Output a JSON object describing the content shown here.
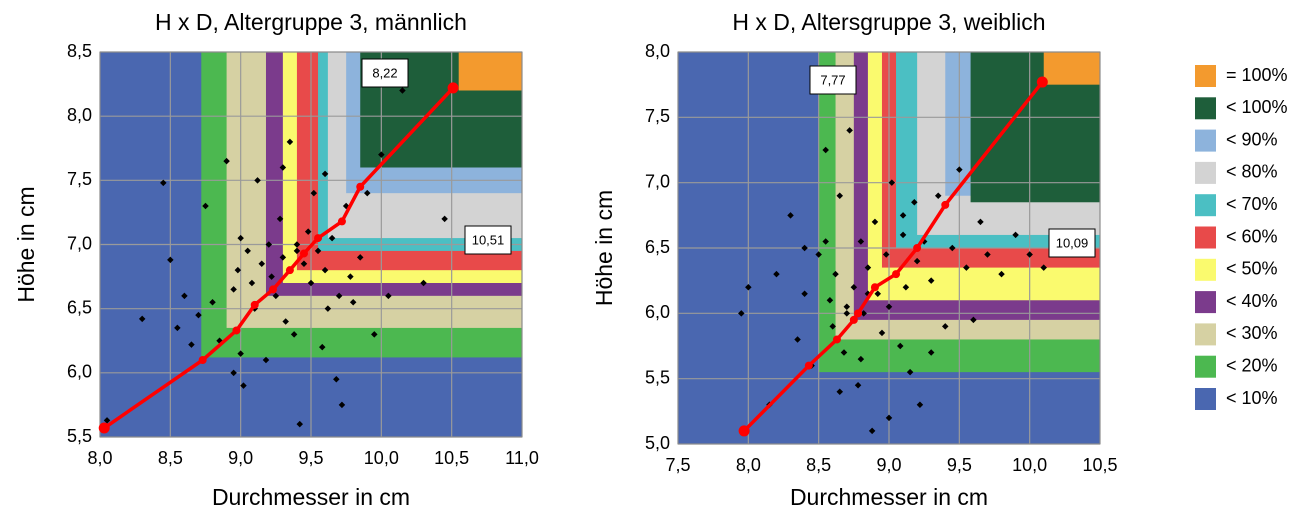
{
  "chart_data": [
    {
      "type": "scatter",
      "title": "H x D, Altergruppe 3, männlich",
      "x_label": "Durchmesser in cm",
      "y_label": "Höhe in cm",
      "xlim": [
        8.0,
        11.0
      ],
      "ylim": [
        5.5,
        8.5
      ],
      "grid": true,
      "xticks": [
        {
          "value": 8.0,
          "label": "8,0"
        },
        {
          "value": 8.5,
          "label": "8,5"
        },
        {
          "value": 9.0,
          "label": "9,0"
        },
        {
          "value": 9.5,
          "label": "9,5"
        },
        {
          "value": 10.0,
          "label": "10,0"
        },
        {
          "value": 10.5,
          "label": "10,5"
        },
        {
          "value": 11.0,
          "label": "11,0"
        }
      ],
      "yticks": [
        {
          "value": 5.5,
          "label": "5,5"
        },
        {
          "value": 6.0,
          "label": "6,0"
        },
        {
          "value": 6.5,
          "label": "6,5"
        },
        {
          "value": 7.0,
          "label": "7,0"
        },
        {
          "value": 7.5,
          "label": "7,5"
        },
        {
          "value": 8.0,
          "label": "8,0"
        },
        {
          "value": 8.5,
          "label": "8,5"
        }
      ],
      "points": {
        "color": "#000000",
        "x": [
          8.05,
          8.3,
          8.45,
          8.5,
          8.55,
          8.6,
          8.65,
          8.7,
          8.75,
          8.8,
          8.85,
          8.9,
          8.95,
          8.98,
          9.0,
          9.02,
          9.05,
          9.08,
          9.1,
          9.12,
          9.15,
          9.18,
          9.2,
          9.22,
          9.25,
          9.28,
          9.3,
          9.32,
          9.35,
          9.38,
          9.4,
          9.42,
          9.45,
          9.48,
          9.5,
          9.52,
          9.55,
          9.58,
          9.6,
          9.62,
          9.65,
          9.68,
          9.7,
          9.72,
          9.75,
          9.78,
          9.8,
          9.85,
          9.9,
          9.95,
          10.0,
          10.05,
          10.15,
          10.3,
          10.45,
          9.0,
          8.95,
          9.4,
          9.6,
          9.3
        ],
        "y": [
          5.63,
          6.42,
          7.48,
          6.88,
          6.35,
          6.6,
          6.22,
          6.45,
          7.3,
          6.55,
          6.25,
          7.65,
          6.0,
          6.8,
          7.05,
          5.9,
          6.95,
          6.7,
          6.5,
          7.5,
          6.85,
          6.1,
          7.0,
          6.75,
          6.6,
          7.2,
          6.9,
          6.4,
          7.8,
          6.3,
          6.95,
          5.6,
          6.85,
          7.1,
          6.7,
          7.4,
          6.95,
          6.2,
          7.55,
          6.5,
          7.05,
          5.95,
          6.6,
          5.75,
          7.3,
          6.75,
          6.55,
          6.9,
          7.4,
          6.3,
          7.7,
          6.6,
          8.2,
          6.7,
          7.2,
          6.15,
          6.65,
          7.0,
          6.8,
          7.6
        ]
      },
      "line": {
        "color": "#ff0000",
        "x": [
          8.03,
          8.73,
          8.97,
          9.1,
          9.23,
          9.35,
          9.45,
          9.55,
          9.72,
          9.85,
          10.51
        ],
        "y": [
          5.57,
          6.1,
          6.33,
          6.53,
          6.65,
          6.8,
          6.93,
          7.05,
          7.18,
          7.45,
          8.22
        ]
      },
      "annotations": [
        {
          "text": "8,22"
        },
        {
          "text": "10,51"
        }
      ]
    },
    {
      "type": "scatter",
      "title": "H x D, Altersgruppe 3, weiblich",
      "x_label": "Durchmesser in cm",
      "y_label": "Höhe in cm",
      "xlim": [
        7.5,
        10.5
      ],
      "ylim": [
        5.0,
        8.0
      ],
      "grid": true,
      "xticks": [
        {
          "value": 7.5,
          "label": "7,5"
        },
        {
          "value": 8.0,
          "label": "8,0"
        },
        {
          "value": 8.5,
          "label": "8,5"
        },
        {
          "value": 9.0,
          "label": "9,0"
        },
        {
          "value": 9.5,
          "label": "9,5"
        },
        {
          "value": 10.0,
          "label": "10,0"
        },
        {
          "value": 10.5,
          "label": "10,5"
        }
      ],
      "yticks": [
        {
          "value": 5.0,
          "label": "5,0"
        },
        {
          "value": 5.5,
          "label": "5,5"
        },
        {
          "value": 6.0,
          "label": "6,0"
        },
        {
          "value": 6.5,
          "label": "6,5"
        },
        {
          "value": 7.0,
          "label": "7,0"
        },
        {
          "value": 7.5,
          "label": "7,5"
        },
        {
          "value": 8.0,
          "label": "8,0"
        }
      ],
      "points": {
        "color": "#000000",
        "x": [
          7.95,
          8.0,
          8.15,
          8.2,
          8.3,
          8.35,
          8.4,
          8.45,
          8.5,
          8.55,
          8.58,
          8.6,
          8.62,
          8.65,
          8.68,
          8.7,
          8.72,
          8.75,
          8.78,
          8.8,
          8.82,
          8.85,
          8.88,
          8.9,
          8.92,
          8.95,
          8.98,
          9.0,
          9.02,
          9.05,
          9.08,
          9.1,
          9.12,
          9.15,
          9.18,
          9.2,
          9.22,
          9.25,
          9.3,
          9.35,
          9.4,
          9.45,
          9.5,
          9.55,
          9.6,
          9.65,
          9.7,
          9.8,
          9.9,
          10.0,
          10.1,
          8.55,
          8.8,
          9.0,
          8.65,
          8.7,
          9.1,
          8.4,
          9.3,
          8.85
        ],
        "y": [
          6.0,
          6.2,
          5.3,
          6.3,
          6.75,
          5.8,
          6.15,
          5.6,
          6.45,
          7.25,
          6.1,
          5.9,
          6.3,
          6.9,
          5.7,
          6.05,
          7.4,
          6.2,
          5.45,
          6.55,
          6.0,
          6.35,
          5.1,
          6.7,
          6.15,
          5.85,
          6.45,
          6.05,
          7.0,
          6.3,
          5.75,
          6.6,
          6.2,
          5.55,
          6.85,
          6.4,
          5.3,
          6.55,
          6.25,
          6.9,
          5.9,
          6.5,
          7.1,
          6.35,
          5.95,
          6.7,
          6.45,
          6.3,
          6.6,
          6.45,
          6.35,
          6.55,
          5.65,
          5.2,
          5.4,
          6.0,
          6.75,
          6.5,
          5.7,
          6.15
        ]
      },
      "line": {
        "color": "#ff0000",
        "x": [
          7.97,
          8.43,
          8.63,
          8.75,
          8.78,
          8.9,
          9.05,
          9.2,
          9.4,
          10.09
        ],
        "y": [
          5.1,
          5.6,
          5.8,
          5.95,
          6.0,
          6.2,
          6.3,
          6.5,
          6.83,
          7.77
        ]
      },
      "annotations": [
        {
          "text": "7,77"
        },
        {
          "text": "10,09"
        }
      ]
    }
  ],
  "legend": {
    "items": [
      {
        "label": "= 100%",
        "color": "#f39a2e"
      },
      {
        "label": "< 100%",
        "color": "#1e5e3a"
      },
      {
        "label": "< 90%",
        "color": "#8db3dc"
      },
      {
        "label": "< 80%",
        "color": "#d3d3d3"
      },
      {
        "label": "< 70%",
        "color": "#4bbfc3"
      },
      {
        "label": "< 60%",
        "color": "#e84a4a"
      },
      {
        "label": "< 50%",
        "color": "#fafa6e"
      },
      {
        "label": "< 40%",
        "color": "#7b3b8c"
      },
      {
        "label": "< 30%",
        "color": "#d6d1a3"
      },
      {
        "label": "< 20%",
        "color": "#4cb850"
      },
      {
        "label": "< 10%",
        "color": "#4a67b0"
      }
    ]
  }
}
